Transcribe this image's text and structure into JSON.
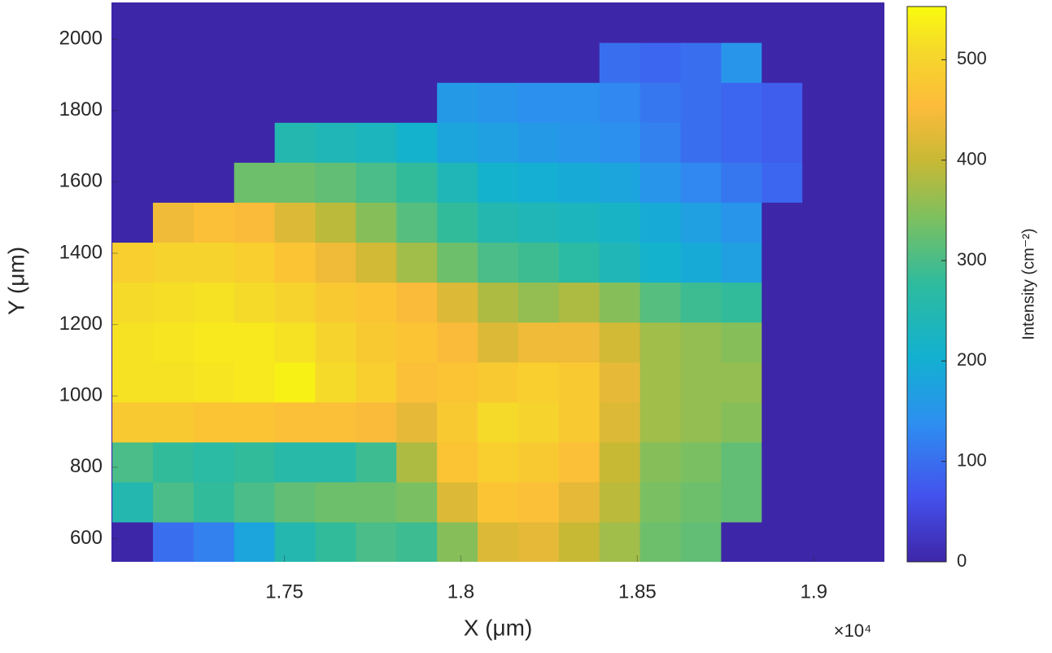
{
  "chart_data": {
    "type": "heatmap",
    "xlabel": "X (μm)",
    "ylabel": "Y (μm)",
    "colorbar_label": "Intensity (cm⁻²)",
    "x_multiplier": "×10⁴",
    "colormap": "parula",
    "xlim": [
      17010,
      19200
    ],
    "ylim": [
      535,
      2103
    ],
    "clim": [
      0,
      553
    ],
    "xticks": [
      {
        "value": 17500,
        "label": "1.75"
      },
      {
        "value": 18000,
        "label": "1.8"
      },
      {
        "value": 18500,
        "label": "1.85"
      },
      {
        "value": 19000,
        "label": "1.9"
      }
    ],
    "yticks": [
      600,
      800,
      1000,
      1200,
      1400,
      1600,
      1800,
      2000
    ],
    "cticks": [
      0,
      100,
      200,
      300,
      400,
      500
    ],
    "x": [
      17070,
      17185,
      17300,
      17415,
      17530,
      17645,
      17760,
      17875,
      17990,
      18105,
      18220,
      18335,
      18450,
      18565,
      18680,
      18795,
      18910,
      19025,
      19140
    ],
    "y": [
      591,
      703,
      815,
      927,
      1039,
      1151,
      1263,
      1375,
      1487,
      1599,
      1711,
      1823,
      1935,
      2047
    ],
    "values": [
      [
        0,
        100,
        120,
        180,
        250,
        280,
        300,
        290,
        350,
        420,
        430,
        400,
        370,
        330,
        320,
        0,
        0,
        0,
        0
      ],
      [
        250,
        300,
        280,
        300,
        320,
        330,
        330,
        340,
        420,
        470,
        460,
        430,
        390,
        340,
        330,
        320,
        0,
        0,
        0
      ],
      [
        300,
        280,
        270,
        280,
        260,
        260,
        290,
        380,
        470,
        490,
        480,
        460,
        400,
        350,
        340,
        320,
        0,
        0,
        0
      ],
      [
        480,
        480,
        470,
        470,
        460,
        460,
        450,
        430,
        480,
        510,
        500,
        480,
        420,
        370,
        360,
        350,
        0,
        0,
        0
      ],
      [
        520,
        520,
        525,
        530,
        540,
        510,
        490,
        460,
        470,
        480,
        490,
        480,
        430,
        370,
        360,
        360,
        0,
        0,
        0
      ],
      [
        520,
        525,
        530,
        530,
        520,
        500,
        480,
        470,
        450,
        420,
        440,
        440,
        410,
        370,
        360,
        350,
        0,
        0,
        0
      ],
      [
        510,
        515,
        520,
        510,
        500,
        480,
        470,
        450,
        420,
        380,
        360,
        380,
        350,
        310,
        290,
        280,
        0,
        0,
        0
      ],
      [
        490,
        500,
        500,
        490,
        470,
        440,
        410,
        370,
        330,
        300,
        290,
        270,
        240,
        210,
        190,
        170,
        0,
        0,
        0
      ],
      [
        0,
        440,
        460,
        450,
        420,
        390,
        350,
        310,
        280,
        250,
        240,
        230,
        220,
        190,
        170,
        150,
        0,
        0,
        0
      ],
      [
        0,
        0,
        0,
        330,
        330,
        320,
        300,
        280,
        240,
        210,
        200,
        190,
        180,
        150,
        130,
        110,
        90,
        0,
        0
      ],
      [
        0,
        0,
        0,
        0,
        250,
        240,
        230,
        210,
        180,
        170,
        160,
        150,
        140,
        120,
        100,
        90,
        80,
        0,
        0
      ],
      [
        0,
        0,
        0,
        0,
        0,
        0,
        0,
        0,
        160,
        150,
        140,
        140,
        130,
        110,
        100,
        90,
        80,
        0,
        0
      ],
      [
        0,
        0,
        0,
        0,
        0,
        0,
        0,
        0,
        0,
        0,
        0,
        0,
        100,
        90,
        100,
        150,
        0,
        0,
        0
      ],
      [
        0,
        0,
        0,
        0,
        0,
        0,
        0,
        0,
        0,
        0,
        0,
        0,
        0,
        0,
        0,
        0,
        0,
        0,
        0
      ]
    ]
  }
}
